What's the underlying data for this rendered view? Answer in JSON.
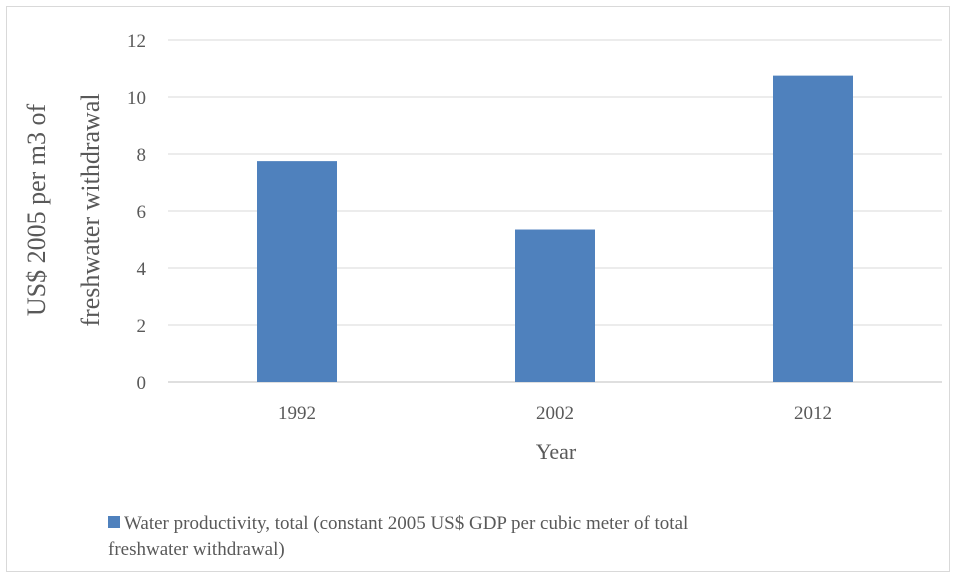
{
  "chart_data": {
    "type": "bar",
    "categories": [
      "1992",
      "2002",
      "2012"
    ],
    "series": [
      {
        "name": "Water productivity, total (constant 2005 US$ GDP per cubic meter of total freshwater withdrawal)",
        "values": [
          7.75,
          5.35,
          10.75
        ],
        "color": "#4f81bd"
      }
    ],
    "xlabel": "Year",
    "ylabel": [
      "US$ 2005 per m3 of",
      "freshwater withdrawal"
    ],
    "ylim": [
      0,
      12
    ],
    "yticks": [
      "0",
      "2",
      "4",
      "6",
      "8",
      "10",
      "12"
    ],
    "grid": true,
    "legend_position": "bottom",
    "legend_lines": [
      "Water productivity, total (constant 2005 US$ GDP per cubic meter of total",
      "freshwater withdrawal)"
    ]
  }
}
